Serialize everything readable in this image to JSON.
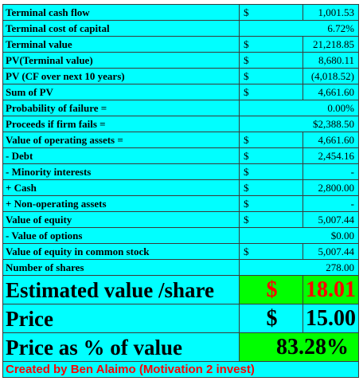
{
  "rows": [
    {
      "label": "Terminal cash flow",
      "dollar": "$",
      "value": "1,001.53"
    },
    {
      "label": "Terminal cost of capital",
      "dollar": "",
      "value": "6.72%"
    },
    {
      "label": "Terminal value",
      "dollar": "$",
      "value": "21,218.85"
    },
    {
      "label": "PV(Terminal value)",
      "dollar": "$",
      "value": "8,680.11"
    },
    {
      "label": "PV (CF over next 10 years)",
      "dollar": "$",
      "value": "(4,018.52)"
    },
    {
      "label": "Sum of PV",
      "dollar": "$",
      "value": "4,661.60"
    },
    {
      "label": "Probability of failure =",
      "dollar": "",
      "value": "0.00%"
    },
    {
      "label": "Proceeds if firm fails =",
      "dollar": "",
      "value": "$2,388.50"
    },
    {
      "label": "Value of operating assets =",
      "dollar": "$",
      "value": "4,661.60"
    },
    {
      "label": " - Debt",
      "dollar": "$",
      "value": "2,454.16"
    },
    {
      "label": " - Minority interests",
      "dollar": "$",
      "value": "-"
    },
    {
      "label": " +  Cash",
      "dollar": "$",
      "value": "2,800.00"
    },
    {
      "label": " + Non-operating assets",
      "dollar": "$",
      "value": "-"
    },
    {
      "label": "Value of equity",
      "dollar": "$",
      "value": "5,007.44"
    },
    {
      "label": " - Value of options",
      "dollar": "",
      "value": "$0.00"
    },
    {
      "label": "Value of equity in common stock",
      "dollar": "$",
      "value": "5,007.44"
    },
    {
      "label": "Number of shares",
      "dollar": "",
      "value": "278.00"
    }
  ],
  "summary": {
    "estimated_label": "Estimated value /share",
    "estimated_dollar": "$",
    "estimated_value": "18.01",
    "price_label": "Price",
    "price_dollar": "$",
    "price_value": "15.00",
    "pct_label": "Price as % of value",
    "pct_value": "83.28%"
  },
  "credit": "Created by Ben Alaimo (Motivation 2 invest)",
  "colors": {
    "background": "#00ffff",
    "highlight": "#00ff00",
    "accent_red": "#ff0000"
  }
}
